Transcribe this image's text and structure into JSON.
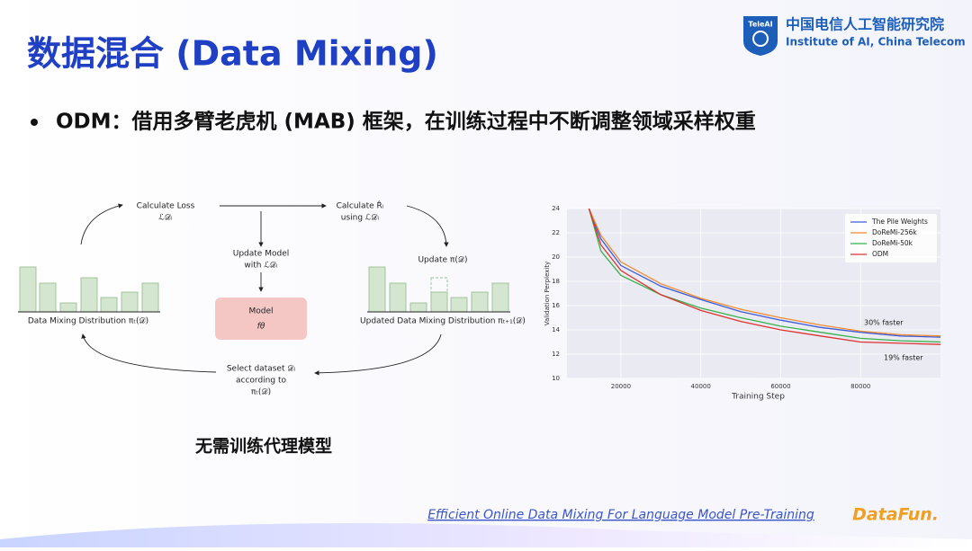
{
  "header": {
    "title": "数据混合 (Data Mixing)",
    "logo_mark": "TeleAI",
    "org_cn": "中国电信人工智能研究院",
    "org_en": "Institute of AI, China Telecom"
  },
  "bullet": "ODM：借用多臂老虎机 (MAB) 框架，在训练过程中不断调整领域采样权重",
  "diagram": {
    "nodes": [
      {
        "lines": [
          "Calculate Loss",
          "ℒ𝒟ᵢ"
        ]
      },
      {
        "lines": [
          "Calculate R̂ᵢ",
          "using ℒ𝒟ᵢ"
        ]
      },
      {
        "lines": [
          "Update Model",
          "with ℒ𝒟ᵢ"
        ]
      },
      {
        "lines": [
          "Update π(𝒟)"
        ]
      },
      {
        "lines": [
          "Model",
          "fθ"
        ]
      },
      {
        "lines": [
          "Data Mixing Distribution πₜ(𝒟)"
        ]
      },
      {
        "lines": [
          "Updated Data Mixing Distribution πₜ₊₁(𝒟)"
        ]
      },
      {
        "lines": [
          "Select dataset 𝒟ᵢ",
          "according to",
          "πₜ(𝒟)"
        ]
      }
    ]
  },
  "caption": "无需训练代理模型",
  "footer": {
    "link": "Efficient Online Data Mixing For Language Model Pre-Training",
    "brand": "DataFun."
  },
  "chart_data": {
    "type": "line",
    "xlabel": "Training Step",
    "ylabel": "Validation Perplexity",
    "x": [
      12000,
      15000,
      20000,
      30000,
      40000,
      50000,
      60000,
      70000,
      80000,
      90000,
      100000
    ],
    "series": [
      {
        "name": "The Pile Weights",
        "color": "#3b5bdb",
        "values": [
          24,
          21.5,
          19.3,
          17.6,
          16.5,
          15.5,
          14.8,
          14.2,
          13.8,
          13.5,
          13.4
        ]
      },
      {
        "name": "DoReMi-256k",
        "color": "#f08c2e",
        "values": [
          24,
          21.8,
          19.6,
          17.8,
          16.6,
          15.7,
          15.0,
          14.4,
          13.9,
          13.6,
          13.5
        ]
      },
      {
        "name": "DoReMi-50k",
        "color": "#37b24d",
        "values": [
          24,
          20.5,
          18.5,
          16.9,
          15.8,
          15.0,
          14.3,
          13.8,
          13.3,
          13.1,
          13.0
        ]
      },
      {
        "name": "ODM",
        "color": "#e03131",
        "values": [
          24,
          21.0,
          18.9,
          16.9,
          15.6,
          14.7,
          14.0,
          13.5,
          13.0,
          12.9,
          12.8
        ]
      }
    ],
    "xlim": [
      6500,
      100000
    ],
    "ylim": [
      10,
      24
    ],
    "xticks": [
      20000,
      40000,
      60000,
      80000
    ],
    "yticks": [
      10,
      12,
      14,
      16,
      18,
      20,
      22,
      24
    ],
    "annotations": [
      "30% faster",
      "19% faster"
    ],
    "grid": true,
    "legend": "upper right"
  }
}
